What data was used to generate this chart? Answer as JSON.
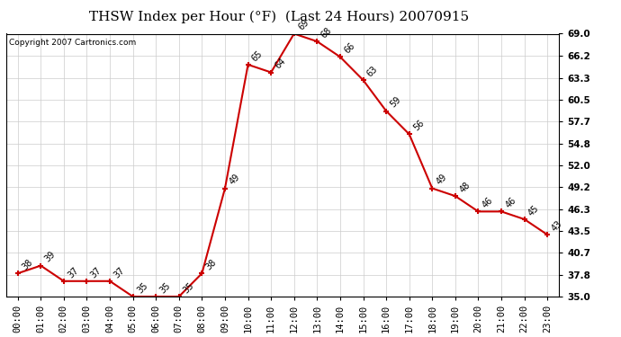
{
  "title": "THSW Index per Hour (°F)  (Last 24 Hours) 20070915",
  "copyright": "Copyright 2007 Cartronics.com",
  "hours": [
    0,
    1,
    2,
    3,
    4,
    5,
    6,
    7,
    8,
    9,
    10,
    11,
    12,
    13,
    14,
    15,
    16,
    17,
    18,
    19,
    20,
    21,
    22,
    23
  ],
  "values": [
    38,
    39,
    37,
    37,
    37,
    35,
    35,
    35,
    38,
    49,
    65,
    64,
    69,
    68,
    66,
    63,
    59,
    56,
    49,
    48,
    46,
    46,
    45,
    43
  ],
  "xlabels": [
    "00:00",
    "01:00",
    "02:00",
    "03:00",
    "04:00",
    "05:00",
    "06:00",
    "07:00",
    "08:00",
    "09:00",
    "10:00",
    "11:00",
    "12:00",
    "13:00",
    "14:00",
    "15:00",
    "16:00",
    "17:00",
    "18:00",
    "19:00",
    "20:00",
    "21:00",
    "22:00",
    "23:00"
  ],
  "ylim": [
    35.0,
    69.0
  ],
  "yticks": [
    35.0,
    37.8,
    40.7,
    43.5,
    46.3,
    49.2,
    52.0,
    54.8,
    57.7,
    60.5,
    63.3,
    66.2,
    69.0
  ],
  "line_color": "#cc0000",
  "marker_color": "#cc0000",
  "bg_color": "#ffffff",
  "plot_bg_color": "#ffffff",
  "grid_color": "#cccccc",
  "title_fontsize": 11,
  "copyright_fontsize": 6.5,
  "label_fontsize": 7,
  "tick_fontsize": 7.5
}
